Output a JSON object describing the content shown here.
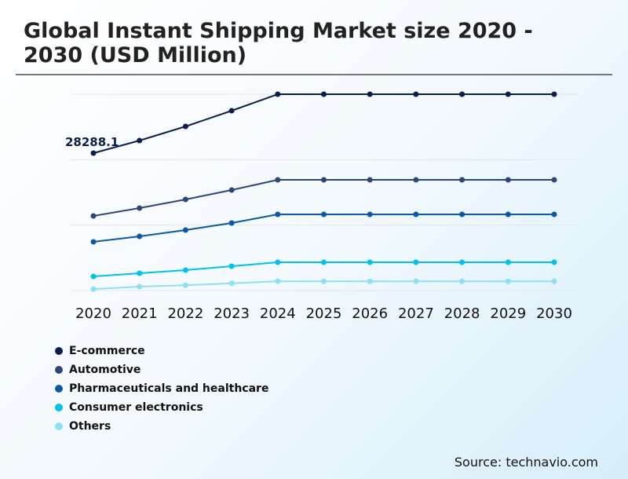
{
  "chart_data": {
    "type": "line",
    "title": "Global Instant Shipping Market size 2020 - 2030 (USD Million)",
    "x": [
      "2020",
      "2021",
      "2022",
      "2023",
      "2024",
      "2025",
      "2026",
      "2027",
      "2028",
      "2029",
      "2030"
    ],
    "ylim": [
      0,
      40412
    ],
    "grid": true,
    "legend_placement": "bottom-left",
    "annotations": [
      {
        "series": "E-commerce",
        "x": "2020",
        "label": "28288.1"
      }
    ],
    "series": [
      {
        "name": "E-commerce",
        "color": "#0b1f4a",
        "values": [
          28288.1,
          30875,
          33785,
          37018,
          40412,
          40412,
          40412,
          40412,
          40412,
          40412,
          40412
        ]
      },
      {
        "name": "Automotive",
        "color": "#2f4577",
        "values": [
          15357,
          16973,
          18751,
          20691,
          22792,
          22792,
          22792,
          22792,
          22792,
          22792,
          22792
        ]
      },
      {
        "name": "Pharmaceuticals and healthcare",
        "color": "#0a58a8",
        "values": [
          10022,
          11154,
          12447,
          13902,
          15680,
          15680,
          15680,
          15680,
          15680,
          15680,
          15680
        ]
      },
      {
        "name": "Consumer electronics",
        "color": "#00c1e6",
        "values": [
          2910,
          3556,
          4203,
          5011,
          5819,
          5819,
          5819,
          5819,
          5819,
          5819,
          5819
        ]
      },
      {
        "name": "Others",
        "color": "#8fdff2",
        "values": [
          300,
          800,
          1100,
          1500,
          1900,
          1900,
          1900,
          1900,
          1900,
          1900,
          1900
        ]
      }
    ]
  },
  "source": "Source: technavio.com"
}
